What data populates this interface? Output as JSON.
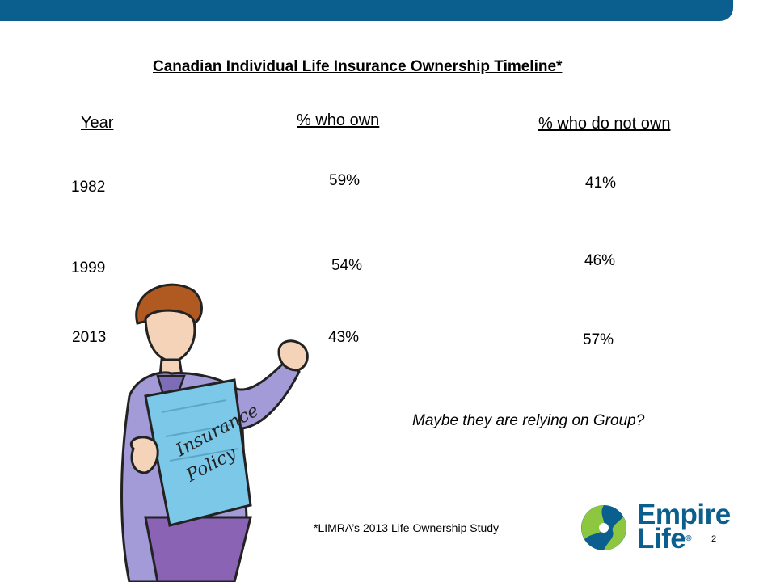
{
  "slide": {
    "title": "Canadian Individual Life Insurance Ownership Timeline*",
    "page_number": "2",
    "footnote": "*LIMRA’s 2013 Life Ownership Study",
    "note": "Maybe they are relying on Group?"
  },
  "table": {
    "headers": {
      "year": "Year",
      "own": "% who own",
      "not_own": "% who do not own"
    },
    "rows": [
      {
        "year": "1982",
        "own": "59%",
        "not_own": "41%"
      },
      {
        "year": "1999",
        "own": "54%",
        "not_own": "46%"
      },
      {
        "year": "2013",
        "own": "43%",
        "not_own": "57%"
      }
    ]
  },
  "logo": {
    "line1": "Empire",
    "line2": "Life",
    "mark": "®"
  },
  "illustration": {
    "policy_line1": "Insurance",
    "policy_line2": "Policy"
  },
  "colors": {
    "brand_blue": "#0b5f8e",
    "brand_green": "#8dc63f"
  }
}
